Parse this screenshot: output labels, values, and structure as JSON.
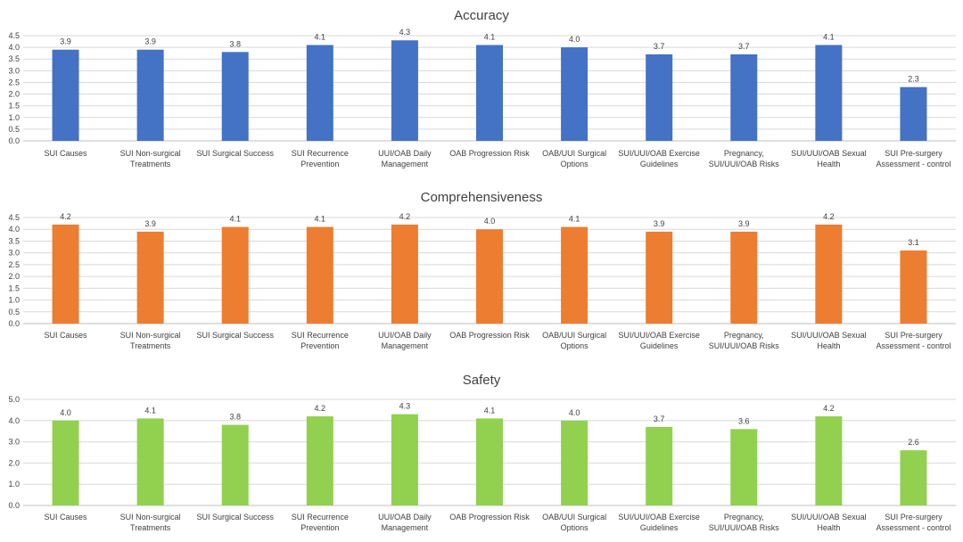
{
  "chart_data": [
    {
      "type": "bar",
      "title": "Accuracy",
      "categories": [
        "SUI Causes",
        "SUI Non-surgical Treatments",
        "SUI Surgical Success",
        "SUI Recurrence Prevention",
        "UUI/OAB Daily Management",
        "OAB Progression Risk",
        "OAB/UUI Surgical Options",
        "SUI/UUI/OAB Exercise Guidelines",
        "Pregnancy, SUI/UUI/OAB Risks",
        "SUI/UUI/OAB Sexual Health",
        "SUI Pre-surgery Assessment - control"
      ],
      "category_lines": [
        [
          "SUI Causes"
        ],
        [
          "SUI Non-surgical",
          "Treatments"
        ],
        [
          "SUI Surgical Success"
        ],
        [
          "SUI Recurrence",
          "Prevention"
        ],
        [
          "UUI/OAB Daily",
          "Management"
        ],
        [
          "OAB Progression Risk"
        ],
        [
          "OAB/UUI Surgical",
          "Options"
        ],
        [
          "SUI/UUI/OAB Exercise",
          "Guidelines"
        ],
        [
          "Pregnancy,",
          "SUI/UUI/OAB Risks"
        ],
        [
          "SUI/UUI/OAB Sexual",
          "Health"
        ],
        [
          "SUI Pre-surgery",
          "Assessment - control"
        ]
      ],
      "values": [
        3.9,
        3.9,
        3.8,
        4.1,
        4.3,
        4.1,
        4.0,
        3.7,
        3.7,
        4.1,
        2.3
      ],
      "value_labels": [
        "3.9",
        "3.9",
        "3.8",
        "4.1",
        "4.3",
        "4.1",
        "4.0",
        "3.7",
        "3.7",
        "4.1",
        "2.3"
      ],
      "ylim": [
        0,
        4.5
      ],
      "yticks": [
        "0.0",
        "0.5",
        "1.0",
        "1.5",
        "2.0",
        "2.5",
        "3.0",
        "3.5",
        "4.0",
        "4.5"
      ],
      "ytick_values": [
        0,
        0.5,
        1.0,
        1.5,
        2.0,
        2.5,
        3.0,
        3.5,
        4.0,
        4.5
      ],
      "color": "#4472c4",
      "grid": true,
      "legend": "none"
    },
    {
      "type": "bar",
      "title": "Comprehensiveness",
      "categories": [
        "SUI Causes",
        "SUI Non-surgical Treatments",
        "SUI Surgical Success",
        "SUI Recurrence Prevention",
        "UUI/OAB Daily Management",
        "OAB Progression Risk",
        "OAB/UUI Surgical Options",
        "SUI/UUI/OAB Exercise Guidelines",
        "Pregnancy, SUI/UUI/OAB Risks",
        "SUI/UUI/OAB Sexual Health",
        "SUI Pre-surgery Assessment - control"
      ],
      "category_lines": [
        [
          "SUI Causes"
        ],
        [
          "SUI Non-surgical",
          "Treatments"
        ],
        [
          "SUI Surgical Success"
        ],
        [
          "SUI Recurrence",
          "Prevention"
        ],
        [
          "UUI/OAB Daily",
          "Management"
        ],
        [
          "OAB Progression Risk"
        ],
        [
          "OAB/UUI Surgical",
          "Options"
        ],
        [
          "SUI/UUI/OAB Exercise",
          "Guidelines"
        ],
        [
          "Pregnancy,",
          "SUI/UUI/OAB Risks"
        ],
        [
          "SUI/UUI/OAB Sexual",
          "Health"
        ],
        [
          "SUI Pre-surgery",
          "Assessment - control"
        ]
      ],
      "values": [
        4.2,
        3.9,
        4.1,
        4.1,
        4.2,
        4.0,
        4.1,
        3.9,
        3.9,
        4.2,
        3.1
      ],
      "value_labels": [
        "4.2",
        "3.9",
        "4.1",
        "4.1",
        "4.2",
        "4.0",
        "4.1",
        "3.9",
        "3.9",
        "4.2",
        "3.1"
      ],
      "ylim": [
        0,
        4.5
      ],
      "yticks": [
        "0.0",
        "0.5",
        "1.0",
        "1.5",
        "2.0",
        "2.5",
        "3.0",
        "3.5",
        "4.0",
        "4.5"
      ],
      "ytick_values": [
        0,
        0.5,
        1.0,
        1.5,
        2.0,
        2.5,
        3.0,
        3.5,
        4.0,
        4.5
      ],
      "color": "#ed7d31",
      "grid": true,
      "legend": "none"
    },
    {
      "type": "bar",
      "title": "Safety",
      "categories": [
        "SUI Causes",
        "SUI Non-surgical Treatments",
        "SUI Surgical Success",
        "SUI Recurrence Prevention",
        "UUI/OAB Daily Management",
        "OAB Progression Risk",
        "OAB/UUI Surgical Options",
        "SUI/UUI/OAB Exercise Guidelines",
        "Pregnancy, SUI/UUI/OAB Risks",
        "SUI/UUI/OAB Sexual Health",
        "SUI Pre-surgery Assessment - control"
      ],
      "category_lines": [
        [
          "SUI Causes"
        ],
        [
          "SUI Non-surgical",
          "Treatments"
        ],
        [
          "SUI Surgical Success"
        ],
        [
          "SUI Recurrence",
          "Prevention"
        ],
        [
          "UUI/OAB Daily",
          "Management"
        ],
        [
          "OAB Progression Risk"
        ],
        [
          "OAB/UUI Surgical",
          "Options"
        ],
        [
          "SUI/UUI/OAB Exercise",
          "Guidelines"
        ],
        [
          "Pregnancy,",
          "SUI/UUI/OAB Risks"
        ],
        [
          "SUI/UUI/OAB Sexual",
          "Health"
        ],
        [
          "SUI Pre-surgery",
          "Assessment - control"
        ]
      ],
      "values": [
        4.0,
        4.1,
        3.8,
        4.2,
        4.3,
        4.1,
        4.0,
        3.7,
        3.6,
        4.2,
        2.6
      ],
      "value_labels": [
        "4.0",
        "4.1",
        "3.8",
        "4.2",
        "4.3",
        "4.1",
        "4.0",
        "3.7",
        "3.6",
        "4.2",
        "2.6"
      ],
      "ylim": [
        0,
        5.0
      ],
      "yticks": [
        "0.0",
        "1.0",
        "2.0",
        "3.0",
        "4.0",
        "5.0"
      ],
      "ytick_values": [
        0,
        1.0,
        2.0,
        3.0,
        4.0,
        5.0
      ],
      "color": "#92d050",
      "grid": true,
      "legend": "none"
    }
  ]
}
